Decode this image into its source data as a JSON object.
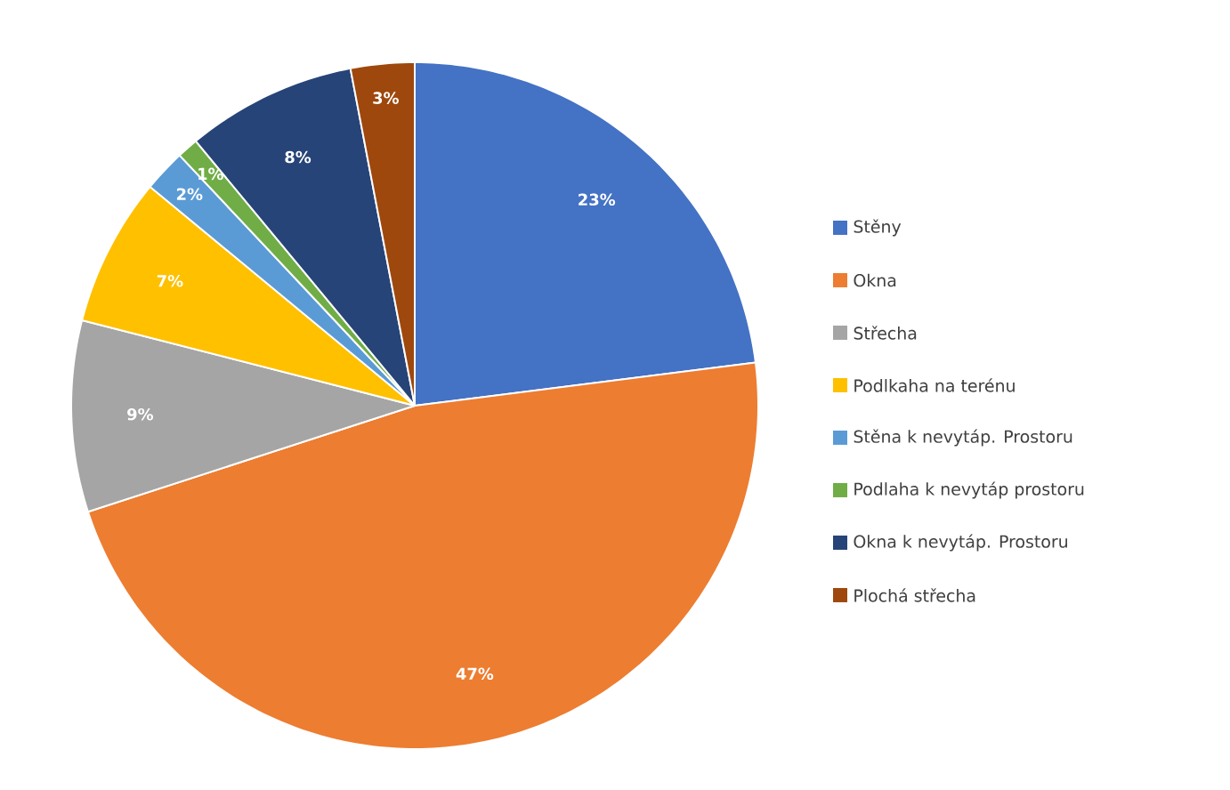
{
  "chart_data": {
    "type": "pie",
    "categories": [
      "Stěny",
      "Okna",
      "Střecha",
      "Podlkaha na terénu",
      "Stěna k nevytáp. Prostoru",
      "Podlaha k nevytáp prostoru",
      "Okna k nevytáp. Prostoru",
      "Plochá střecha"
    ],
    "values": [
      23,
      47,
      9,
      7,
      2,
      1,
      8,
      3
    ],
    "value_labels": [
      "23%",
      "47%",
      "9%",
      "7%",
      "2%",
      "1%",
      "8%",
      "3%"
    ],
    "colors": [
      "#4472c4",
      "#ed7d31",
      "#a5a5a5",
      "#ffc000",
      "#5b9bd5",
      "#70ad47",
      "#264478",
      "#9e480e"
    ],
    "legend": "right"
  }
}
